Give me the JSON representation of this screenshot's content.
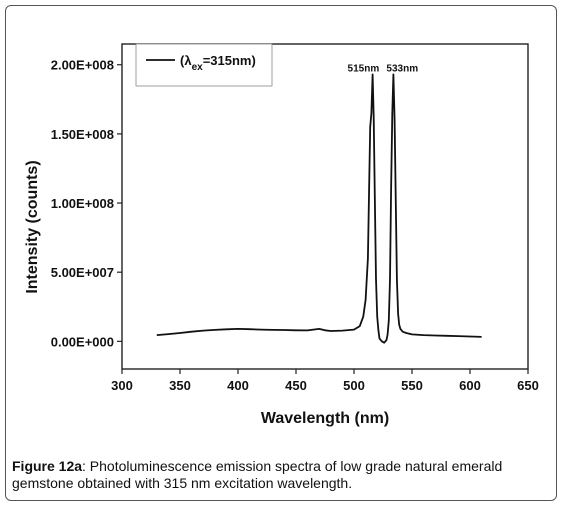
{
  "chart_data": {
    "type": "line",
    "title": "",
    "xlabel": "Wavelength (nm)",
    "ylabel": "Intensity (counts)",
    "xlim": [
      300,
      650
    ],
    "ylim": [
      -20000000,
      215000000
    ],
    "x_ticks": [
      300,
      350,
      400,
      450,
      500,
      550,
      600,
      650
    ],
    "x_tick_labels": [
      "300",
      "350",
      "400",
      "450",
      "500",
      "550",
      "600",
      "650"
    ],
    "y_ticks": [
      0,
      50000000,
      100000000,
      150000000,
      200000000
    ],
    "y_tick_labels": [
      "0.00E+000",
      "5.00E+007",
      "1.00E+008",
      "1.50E+008",
      "2.00E+008"
    ],
    "legend": {
      "position": "top-left",
      "prefix": "(λ",
      "sub": "ex",
      "suffix": "=315nm)"
    },
    "annotations": [
      {
        "text": "515nm",
        "x": 515
      },
      {
        "text": "533nm",
        "x": 533
      }
    ],
    "series": [
      {
        "color": "#111111",
        "x": [
          330,
          340,
          350,
          360,
          370,
          380,
          390,
          400,
          410,
          420,
          430,
          440,
          450,
          460,
          465,
          470,
          475,
          480,
          490,
          500,
          505,
          508,
          510,
          512,
          513,
          514,
          515,
          516,
          517,
          518,
          519,
          520,
          521,
          522,
          524,
          526,
          528,
          529,
          530,
          531,
          532,
          533,
          534,
          535,
          536,
          537,
          538,
          539,
          540,
          542,
          545,
          550,
          560,
          570,
          580,
          590,
          600,
          610
        ],
        "y": [
          4500000,
          5200000,
          6000000,
          7000000,
          7800000,
          8300000,
          8700000,
          9000000,
          8800000,
          8500000,
          8300000,
          8200000,
          8000000,
          7900000,
          8500000,
          9000000,
          8000000,
          7500000,
          7800000,
          8500000,
          11000000,
          18000000,
          30000000,
          60000000,
          110000000,
          155000000,
          165000000,
          193000000,
          162000000,
          100000000,
          45000000,
          18000000,
          8000000,
          2000000,
          0,
          -1000000,
          1000000,
          5000000,
          15000000,
          45000000,
          110000000,
          165000000,
          193000000,
          160000000,
          100000000,
          45000000,
          20000000,
          12000000,
          9000000,
          7000000,
          6000000,
          5000000,
          4500000,
          4200000,
          4000000,
          3800000,
          3500000,
          3200000
        ]
      }
    ]
  },
  "caption": {
    "label": "Figure 12a",
    "text": ": Photoluminescence emission spectra of low grade natural emerald gemstone obtained with 315 nm excitation wavelength."
  }
}
